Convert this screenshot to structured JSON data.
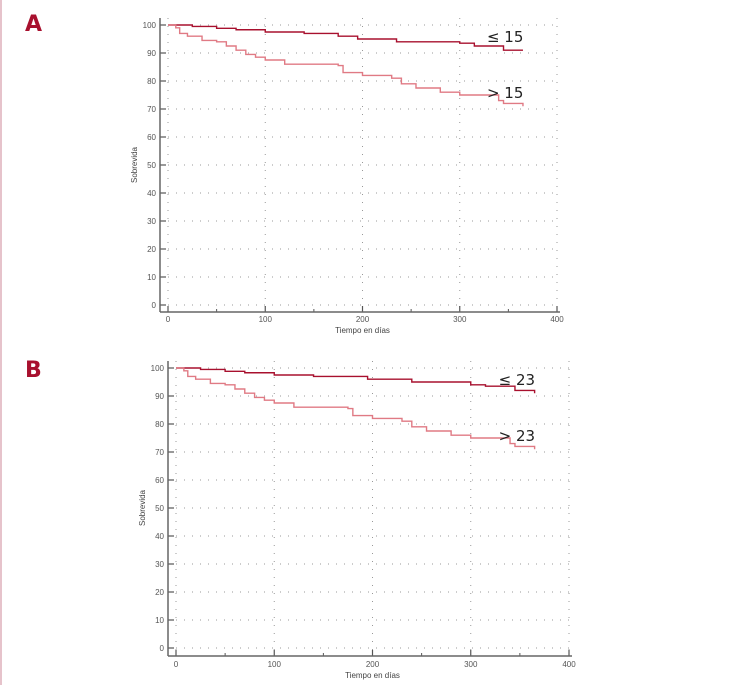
{
  "panels": [
    {
      "label": "A",
      "legend_high": "≤ 15",
      "legend_low": "> 15"
    },
    {
      "label": "B",
      "legend_high": "≤ 23",
      "legend_low": "> 23"
    }
  ],
  "colors": {
    "group_low_risk": "#a8102e",
    "group_high_risk": "#e07a84",
    "panel_label": "#a8102e"
  },
  "chart_data": [
    {
      "type": "line",
      "subtype": "kaplan-meier step",
      "title": "A",
      "xlabel": "Tiempo en días",
      "ylabel": "Sobrevida",
      "xlim": [
        0,
        400
      ],
      "ylim": [
        0,
        100
      ],
      "xticks": [
        0,
        100,
        200,
        300,
        400
      ],
      "yticks": [
        0,
        10,
        20,
        30,
        40,
        50,
        60,
        70,
        80,
        90,
        100
      ],
      "grid": true,
      "series": [
        {
          "name": "≤ 15",
          "x": [
            0,
            25,
            50,
            70,
            100,
            140,
            175,
            195,
            235,
            300,
            315,
            345,
            365
          ],
          "y": [
            100,
            99.5,
            98.8,
            98.3,
            97.5,
            97,
            96,
            95,
            94,
            93.5,
            92.5,
            91,
            91
          ]
        },
        {
          "name": "> 15",
          "x": [
            0,
            8,
            12,
            20,
            35,
            50,
            60,
            70,
            80,
            90,
            100,
            120,
            175,
            180,
            200,
            230,
            240,
            255,
            280,
            300,
            340,
            345,
            365
          ],
          "y": [
            100,
            99,
            97,
            96,
            94.5,
            94,
            92.5,
            91,
            89.5,
            88.5,
            87.5,
            86,
            85.5,
            83,
            82,
            81,
            79,
            77.5,
            76,
            75,
            73,
            72,
            71
          ]
        }
      ]
    },
    {
      "type": "line",
      "subtype": "kaplan-meier step",
      "title": "B",
      "xlabel": "Tiempo en días",
      "ylabel": "Sobrevida",
      "xlim": [
        0,
        400
      ],
      "ylim": [
        0,
        100
      ],
      "xticks": [
        0,
        100,
        200,
        300,
        400
      ],
      "yticks": [
        0,
        10,
        20,
        30,
        40,
        50,
        60,
        70,
        80,
        90,
        100
      ],
      "grid": true,
      "series": [
        {
          "name": "≤ 23",
          "x": [
            0,
            25,
            50,
            70,
            100,
            140,
            195,
            240,
            300,
            315,
            345,
            365
          ],
          "y": [
            100,
            99.5,
            98.8,
            98.3,
            97.5,
            97,
            96,
            95,
            94,
            93.5,
            92,
            91
          ]
        },
        {
          "name": "> 23",
          "x": [
            0,
            8,
            12,
            20,
            35,
            50,
            60,
            70,
            80,
            90,
            100,
            120,
            175,
            180,
            200,
            230,
            240,
            255,
            280,
            300,
            340,
            345,
            365
          ],
          "y": [
            100,
            99,
            97,
            96,
            94.5,
            94,
            92.5,
            91,
            89.5,
            88.5,
            87.5,
            86,
            85.5,
            83,
            82,
            81,
            79,
            77.5,
            76,
            75,
            73,
            72,
            71
          ]
        }
      ]
    }
  ]
}
